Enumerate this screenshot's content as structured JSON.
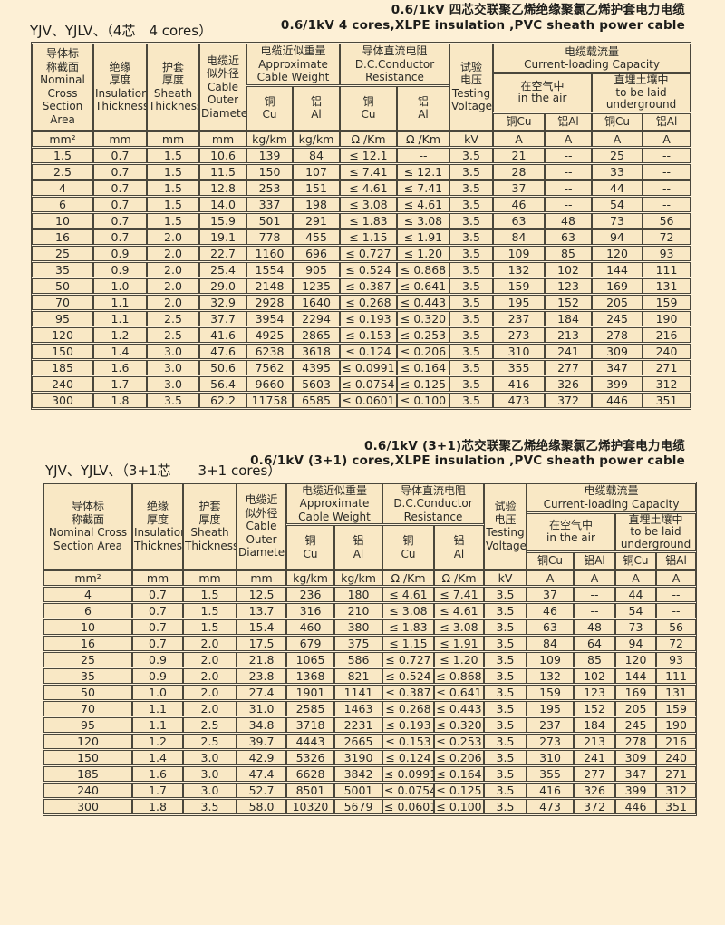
{
  "colors": {
    "page_bg": "#FDF0D6",
    "cell_bg": "#F9E8C5",
    "border": "#4A473C",
    "text": "#2A2A26"
  },
  "tables": [
    {
      "title_cn": "0.6/1kV 四芯交联聚乙烯绝缘聚氯乙烯护套电力电缆",
      "title_en": "0.6/1kV 4 cores,XLPE insulation ,PVC sheath power cable",
      "model_label": "YJV、YJLV、（4芯　4 cores）",
      "header": {
        "nominal": "导体标\n称截面\nNominal\nCross\nSection Area",
        "insulation": "绝缘\n厚度\nInsulation\nThickness",
        "sheath": "护套\n厚度\nSheath\nThickness",
        "diameter": "电缆近\n似外径\nCable\nOuter\nDiameter",
        "weight_group": "电缆近似重量\nApproximate\nCable Weight",
        "resistance_group": "导体直流电阻\nD.C.Conductor\nResistance",
        "voltage": "试验\n电压\nTesting\nVoltage",
        "capacity_group": "电缆载流量\nCurrent-loading Capacity",
        "air": "在空气中\nin the air",
        "underground": "直埋土壤中\nto be laid\nunderground",
        "cu_stacked": "铜\nCu",
        "al_stacked": "铝\nAl",
        "cu_inline": "铜Cu",
        "al_inline": "铝Al"
      },
      "units": [
        "mm²",
        "mm",
        "mm",
        "mm",
        "kg/km",
        "kg/km",
        "Ω /Km",
        "Ω /Km",
        "kV",
        "A",
        "A",
        "A",
        "A"
      ],
      "rows": [
        [
          "1.5",
          "0.7",
          "1.5",
          "10.6",
          "139",
          "84",
          "≤ 12.1",
          "--",
          "3.5",
          "21",
          "--",
          "25",
          "--"
        ],
        [
          "2.5",
          "0.7",
          "1.5",
          "11.5",
          "150",
          "107",
          "≤ 7.41",
          "≤ 12.1",
          "3.5",
          "28",
          "--",
          "33",
          "--"
        ],
        [
          "4",
          "0.7",
          "1.5",
          "12.8",
          "253",
          "151",
          "≤ 4.61",
          "≤ 7.41",
          "3.5",
          "37",
          "--",
          "44",
          "--"
        ],
        [
          "6",
          "0.7",
          "1.5",
          "14.0",
          "337",
          "198",
          "≤ 3.08",
          "≤ 4.61",
          "3.5",
          "46",
          "--",
          "54",
          "--"
        ],
        [
          "10",
          "0.7",
          "1.5",
          "15.9",
          "501",
          "291",
          "≤ 1.83",
          "≤ 3.08",
          "3.5",
          "63",
          "48",
          "73",
          "56"
        ],
        [
          "16",
          "0.7",
          "2.0",
          "19.1",
          "778",
          "455",
          "≤ 1.15",
          "≤ 1.91",
          "3.5",
          "84",
          "63",
          "94",
          "72"
        ],
        [
          "25",
          "0.9",
          "2.0",
          "22.7",
          "1160",
          "696",
          "≤ 0.727",
          "≤ 1.20",
          "3.5",
          "109",
          "85",
          "120",
          "93"
        ],
        [
          "35",
          "0.9",
          "2.0",
          "25.4",
          "1554",
          "905",
          "≤ 0.524",
          "≤ 0.868",
          "3.5",
          "132",
          "102",
          "144",
          "111"
        ],
        [
          "50",
          "1.0",
          "2.0",
          "29.0",
          "2148",
          "1235",
          "≤ 0.387",
          "≤ 0.641",
          "3.5",
          "159",
          "123",
          "169",
          "131"
        ],
        [
          "70",
          "1.1",
          "2.0",
          "32.9",
          "2928",
          "1640",
          "≤ 0.268",
          "≤ 0.443",
          "3.5",
          "195",
          "152",
          "205",
          "159"
        ],
        [
          "95",
          "1.1",
          "2.5",
          "37.7",
          "3954",
          "2294",
          "≤ 0.193",
          "≤ 0.320",
          "3.5",
          "237",
          "184",
          "245",
          "190"
        ],
        [
          "120",
          "1.2",
          "2.5",
          "41.6",
          "4925",
          "2865",
          "≤ 0.153",
          "≤ 0.253",
          "3.5",
          "273",
          "213",
          "278",
          "216"
        ],
        [
          "150",
          "1.4",
          "3.0",
          "47.6",
          "6238",
          "3618",
          "≤ 0.124",
          "≤ 0.206",
          "3.5",
          "310",
          "241",
          "309",
          "240"
        ],
        [
          "185",
          "1.6",
          "3.0",
          "50.6",
          "7562",
          "4395",
          "≤ 0.0991",
          "≤ 0.164",
          "3.5",
          "355",
          "277",
          "347",
          "271"
        ],
        [
          "240",
          "1.7",
          "3.0",
          "56.4",
          "9660",
          "5603",
          "≤ 0.0754",
          "≤ 0.125",
          "3.5",
          "416",
          "326",
          "399",
          "312"
        ],
        [
          "300",
          "1.8",
          "3.5",
          "62.2",
          "11758",
          "6585",
          "≤ 0.0601",
          "≤ 0.100",
          "3.5",
          "473",
          "372",
          "446",
          "351"
        ]
      ]
    },
    {
      "title_cn": "0.6/1kV (3+1)芯交联聚乙烯绝缘聚氯乙烯护套电力电缆",
      "title_en": "0.6/1kV (3+1) cores,XLPE insulation ,PVC sheath power cable",
      "model_label": "YJV、YJLV、（3+1芯　　3+1 cores）",
      "header": {
        "nominal": "导体标\n称截面\nNominal Cross\nSection Area",
        "insulation": "绝缘\n厚度\nInsulation\nThickness",
        "sheath": "护套\n厚度\nSheath\nThickness",
        "diameter": "电缆近\n似外径\nCable\nOuter\nDiameter",
        "weight_group": "电缆近似重量\nApproximate\nCable Weight",
        "resistance_group": "导体直流电阻\nD.C.Conductor\nResistance",
        "voltage": "试验\n电压\nTesting\nVoltage",
        "capacity_group": "电缆载流量\nCurrent-loading Capacity",
        "air": "在空气中\nin the air",
        "underground": "直埋土壤中\nto be laid\nunderground",
        "cu_stacked": "铜\nCu",
        "al_stacked": "铝\nAl",
        "cu_inline": "铜Cu",
        "al_inline": "铝Al"
      },
      "units": [
        "mm²",
        "mm",
        "mm",
        "mm",
        "kg/km",
        "kg/km",
        "Ω /Km",
        "Ω /Km",
        "kV",
        "A",
        "A",
        "A",
        "A"
      ],
      "rows": [
        [
          "4",
          "0.7",
          "1.5",
          "12.5",
          "236",
          "180",
          "≤ 4.61",
          "≤ 7.41",
          "3.5",
          "37",
          "--",
          "44",
          "--"
        ],
        [
          "6",
          "0.7",
          "1.5",
          "13.7",
          "316",
          "210",
          "≤ 3.08",
          "≤ 4.61",
          "3.5",
          "46",
          "--",
          "54",
          "--"
        ],
        [
          "10",
          "0.7",
          "1.5",
          "15.4",
          "460",
          "380",
          "≤ 1.83",
          "≤ 3.08",
          "3.5",
          "63",
          "48",
          "73",
          "56"
        ],
        [
          "16",
          "0.7",
          "2.0",
          "17.5",
          "679",
          "375",
          "≤ 1.15",
          "≤ 1.91",
          "3.5",
          "84",
          "64",
          "94",
          "72"
        ],
        [
          "25",
          "0.9",
          "2.0",
          "21.8",
          "1065",
          "586",
          "≤ 0.727",
          "≤ 1.20",
          "3.5",
          "109",
          "85",
          "120",
          "93"
        ],
        [
          "35",
          "0.9",
          "2.0",
          "23.8",
          "1368",
          "821",
          "≤ 0.524",
          "≤ 0.868",
          "3.5",
          "132",
          "102",
          "144",
          "111"
        ],
        [
          "50",
          "1.0",
          "2.0",
          "27.4",
          "1901",
          "1141",
          "≤ 0.387",
          "≤ 0.641",
          "3.5",
          "159",
          "123",
          "169",
          "131"
        ],
        [
          "70",
          "1.1",
          "2.0",
          "31.0",
          "2585",
          "1463",
          "≤ 0.268",
          "≤ 0.443",
          "3.5",
          "195",
          "152",
          "205",
          "159"
        ],
        [
          "95",
          "1.1",
          "2.5",
          "34.8",
          "3718",
          "2231",
          "≤ 0.193",
          "≤ 0.320",
          "3.5",
          "237",
          "184",
          "245",
          "190"
        ],
        [
          "120",
          "1.2",
          "2.5",
          "39.7",
          "4443",
          "2665",
          "≤ 0.153",
          "≤ 0.253",
          "3.5",
          "273",
          "213",
          "278",
          "216"
        ],
        [
          "150",
          "1.4",
          "3.0",
          "42.9",
          "5326",
          "3190",
          "≤ 0.124",
          "≤ 0.206",
          "3.5",
          "310",
          "241",
          "309",
          "240"
        ],
        [
          "185",
          "1.6",
          "3.0",
          "47.4",
          "6628",
          "3842",
          "≤ 0.0991",
          "≤ 0.164",
          "3.5",
          "355",
          "277",
          "347",
          "271"
        ],
        [
          "240",
          "1.7",
          "3.0",
          "52.7",
          "8501",
          "5001",
          "≤ 0.0754",
          "≤ 0.125",
          "3.5",
          "416",
          "326",
          "399",
          "312"
        ],
        [
          "300",
          "1.8",
          "3.5",
          "58.0",
          "10320",
          "5679",
          "≤ 0.0601",
          "≤ 0.100",
          "3.5",
          "473",
          "372",
          "446",
          "351"
        ]
      ]
    }
  ]
}
